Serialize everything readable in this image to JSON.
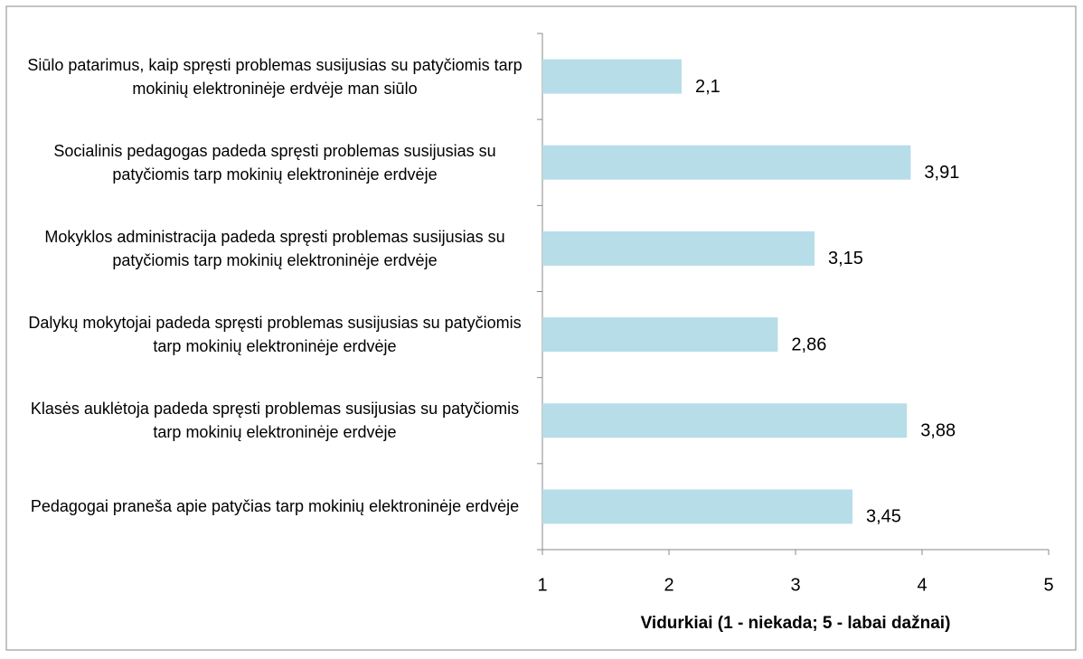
{
  "chart_data": {
    "type": "bar",
    "orientation": "horizontal",
    "categories": [
      "Siūlo patarimus, kaip spręsti problemas susijusias su patyčiomis tarp mokinių elektroninėje erdvėje man siūlo",
      "Socialinis pedagogas padeda spręsti problemas susijusias su patyčiomis tarp mokinių elektroninėje erdvėje",
      "Mokyklos administracija padeda spręsti problemas susijusias su patyčiomis tarp mokinių elektroninėje erdvėje",
      "Dalykų mokytojai padeda spręsti problemas susijusias su patyčiomis tarp mokinių elektroninėje erdvėje",
      "Klasės auklėtoja padeda spręsti problemas susijusias su patyčiomis tarp mokinių elektroninėje erdvėje",
      "Pedagogai praneša apie patyčias tarp mokinių elektroninėje erdvėje"
    ],
    "values": [
      2.1,
      3.91,
      3.15,
      2.86,
      3.88,
      3.45
    ],
    "value_labels": [
      "2,1",
      "3,91",
      "3,15",
      "2,86",
      "3,88",
      "3,45"
    ],
    "color": "#b7dde8",
    "xlim": [
      1,
      5
    ],
    "xticks": [
      1,
      2,
      3,
      4,
      5
    ],
    "xlabel": "Vidurkiai (1 - niekada; 5 - labai dažnai)"
  }
}
